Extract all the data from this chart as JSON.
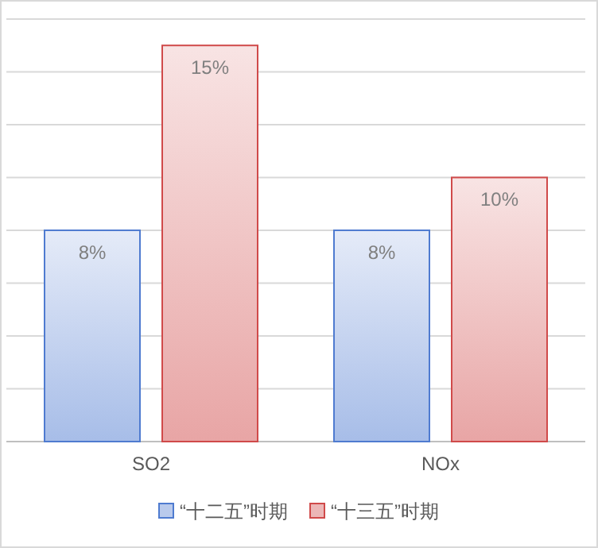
{
  "chart_data": {
    "type": "bar",
    "categories": [
      "SO2",
      "NOx"
    ],
    "series": [
      {
        "name": "“十二五”时期",
        "color": "#4f7bd0",
        "values": [
          8,
          8
        ],
        "value_labels": [
          "8%",
          "8%"
        ]
      },
      {
        "name": "“十三五”时期",
        "color": "#d04a4a",
        "values": [
          15,
          10
        ],
        "value_labels": [
          "15%",
          "10%"
        ]
      }
    ],
    "ylim": [
      0,
      16.6
    ],
    "yticks": [
      {
        "value": 0,
        "label": null
      },
      {
        "value": 2,
        "label": null
      },
      {
        "value": 4,
        "label": null
      },
      {
        "value": 6,
        "label": null
      },
      {
        "value": 8,
        "label": null
      },
      {
        "value": 10,
        "label": null
      },
      {
        "value": 12,
        "label": null
      },
      {
        "value": 14,
        "label": null
      },
      {
        "value": 16,
        "label": null
      }
    ],
    "tick_labels": "x",
    "grid": "y",
    "legend": "bottom"
  }
}
